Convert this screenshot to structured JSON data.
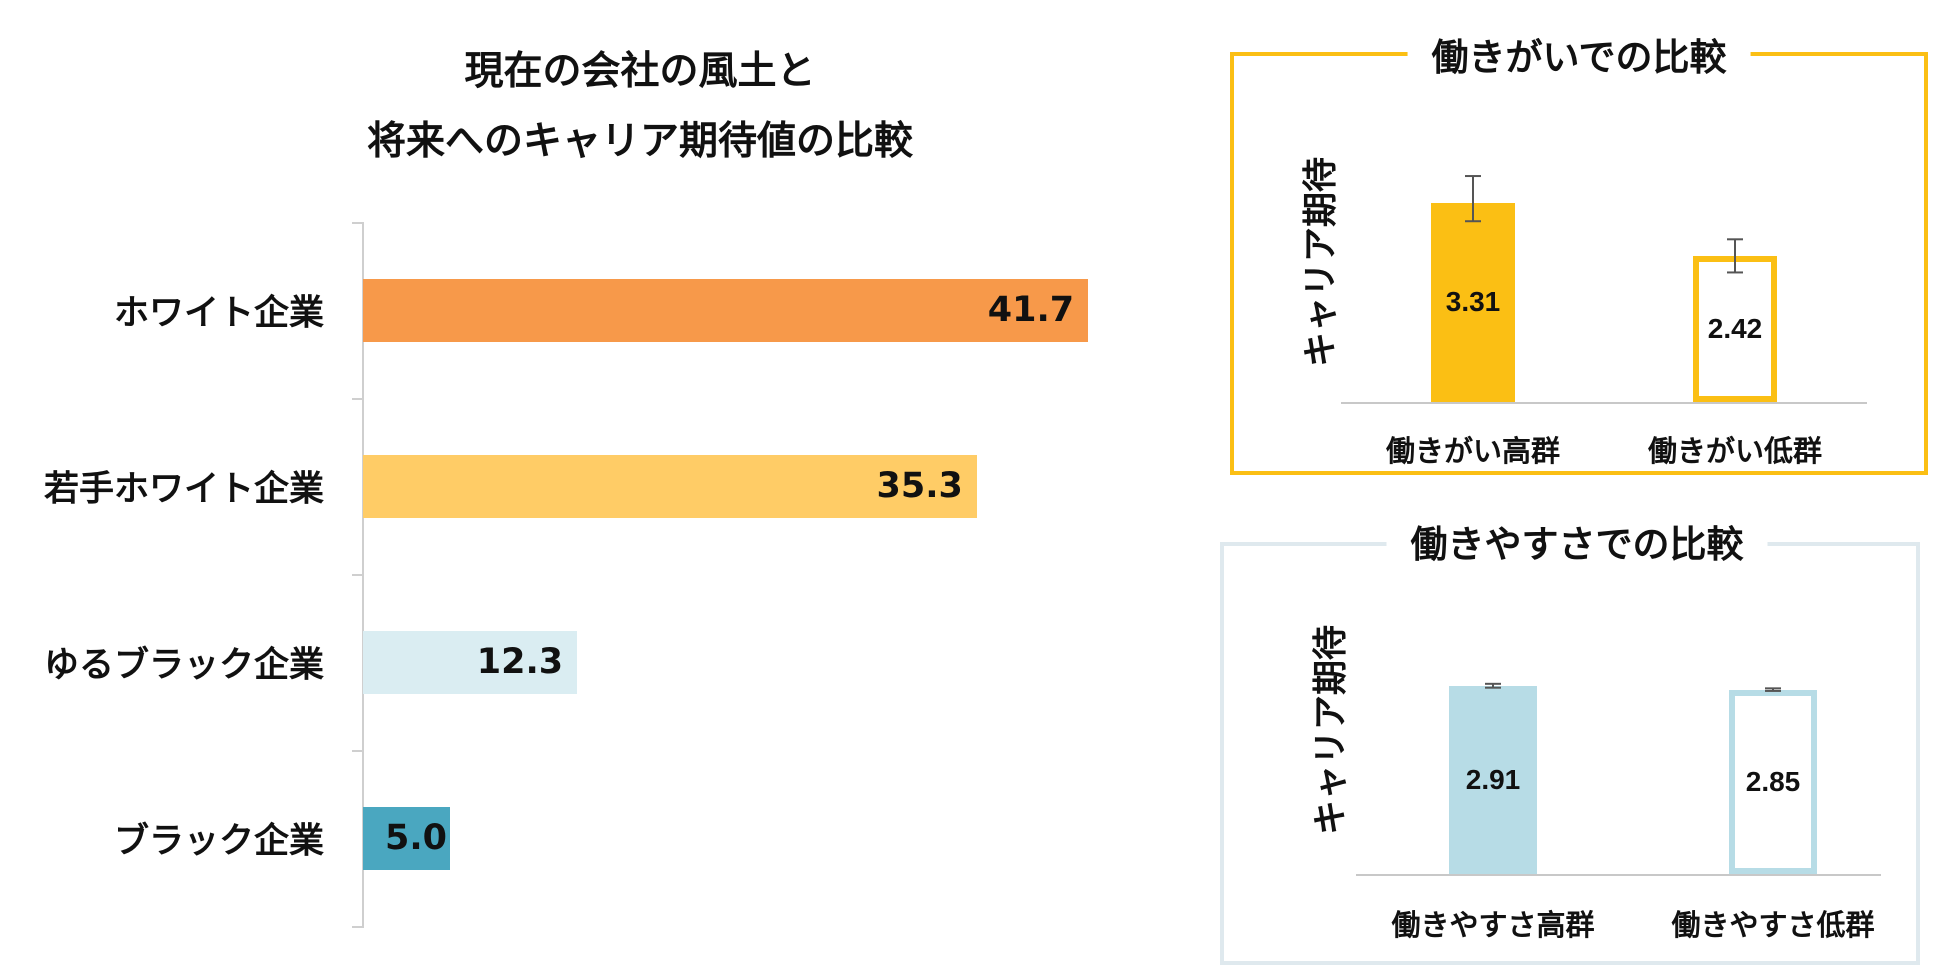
{
  "chart_data": [
    {
      "type": "bar",
      "orientation": "horizontal",
      "title": [
        "現在の会社の風土と",
        "将来へのキャリア期待値の比較"
      ],
      "categories": [
        "ホワイト企業",
        "若手ホワイト企業",
        "ゆるブラック企業",
        "ブラック企業"
      ],
      "values": [
        41.7,
        35.3,
        12.3,
        5.0
      ],
      "value_labels": [
        "41.7",
        "35.3",
        "12.3",
        "5.0"
      ],
      "colors": [
        "#f7994a",
        "#ffcc66",
        "#daedf2",
        "#4aa7c0"
      ],
      "xlim": [
        0,
        42
      ]
    },
    {
      "type": "bar",
      "title": "働きがいでの比較",
      "ylabel": "キャリア期待",
      "categories": [
        "働きがい高群",
        "働きがい低群"
      ],
      "values": [
        3.31,
        2.42
      ],
      "value_labels": [
        "3.31",
        "2.42"
      ],
      "error": [
        [
          3.0,
          3.75
        ],
        [
          2.15,
          2.7
        ]
      ],
      "ylim": [
        0,
        3.9
      ],
      "accent": "#fbbf14"
    },
    {
      "type": "bar",
      "title": "働きやすさでの比較",
      "ylabel": "キャリア期待",
      "categories": [
        "働きやすさ高群",
        "働きやすさ低群"
      ],
      "values": [
        2.91,
        2.85
      ],
      "value_labels": [
        "2.91",
        "2.85"
      ],
      "error": [
        [
          2.88,
          2.94
        ],
        [
          2.83,
          2.87
        ]
      ],
      "ylim": [
        0,
        3.2
      ],
      "accent": "#b7dce6"
    }
  ]
}
